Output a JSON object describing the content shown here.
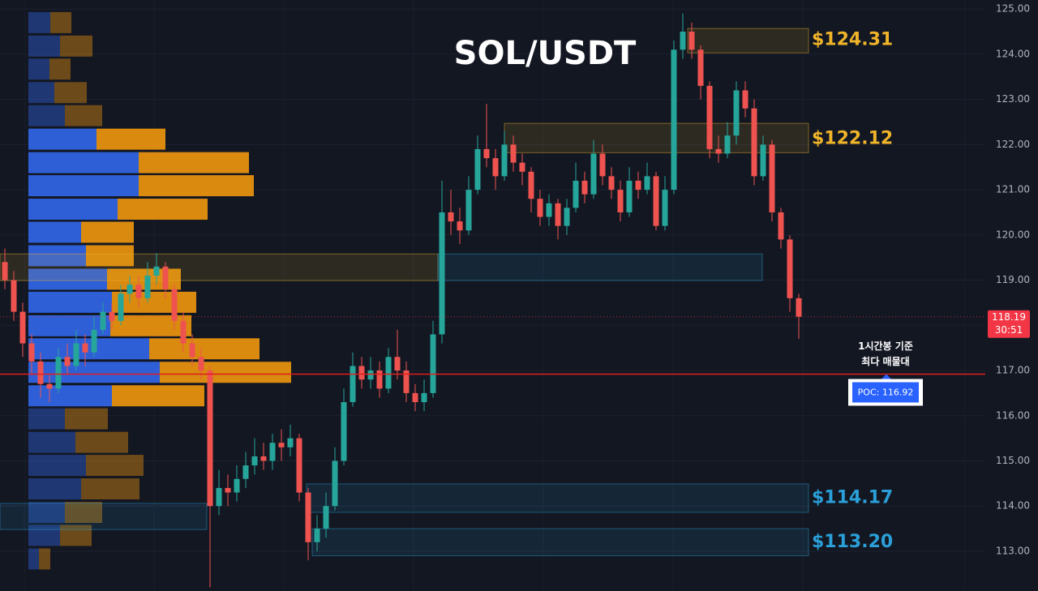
{
  "chart_data": {
    "type": "candlestick",
    "title": "SOL/USDT",
    "ylim": [
      112.12,
      125.2
    ],
    "yticks": [
      {
        "value": 113,
        "label": "113.00"
      },
      {
        "value": 114,
        "label": "114.00"
      },
      {
        "value": 115,
        "label": "115.00"
      },
      {
        "value": 116,
        "label": "116.00"
      },
      {
        "value": 117,
        "label": "117.00"
      },
      {
        "value": 118,
        "label": "118.00"
      },
      {
        "value": 119,
        "label": "119.00"
      },
      {
        "value": 120,
        "label": "120.00"
      },
      {
        "value": 121,
        "label": "121.00"
      },
      {
        "value": 122,
        "label": "122.00"
      },
      {
        "value": 123,
        "label": "123.00"
      },
      {
        "value": 124,
        "label": "124.00"
      },
      {
        "value": 125,
        "label": "125.00"
      }
    ],
    "grid": true,
    "up_color": "#26a69a",
    "down_color": "#ef5350",
    "open": [
      119.4,
      119.0,
      118.3,
      117.6,
      117.2,
      116.7,
      116.6,
      117.3,
      117.1,
      117.6,
      117.4,
      117.9,
      118.3,
      118.1,
      118.7,
      118.9,
      118.6,
      119.1,
      119.3,
      118.8,
      118.1,
      117.6,
      117.3,
      117.0,
      114.0,
      114.4,
      114.3,
      114.6,
      114.9,
      115.1,
      115.0,
      115.4,
      115.3,
      115.5,
      114.3,
      113.2,
      113.5,
      114.0,
      115.0,
      116.3,
      117.1,
      116.8,
      117.0,
      116.6,
      117.3,
      117.0,
      116.5,
      116.3,
      116.5,
      117.8,
      120.5,
      120.3,
      120.1,
      121.0,
      121.9,
      121.7,
      121.3,
      122.0,
      121.6,
      121.4,
      120.8,
      120.4,
      120.7,
      120.2,
      120.6,
      121.2,
      120.9,
      121.8,
      121.3,
      121.0,
      120.5,
      121.2,
      121.0,
      121.3,
      120.2,
      121.0,
      124.1,
      124.5,
      124.1,
      123.3,
      121.9,
      121.8,
      122.2,
      123.2,
      122.8,
      121.3,
      122.0,
      120.5,
      119.9,
      118.6
    ],
    "high": [
      119.7,
      119.2,
      118.5,
      117.8,
      117.4,
      116.9,
      117.5,
      117.6,
      117.9,
      117.8,
      118.2,
      118.5,
      118.5,
      118.9,
      119.1,
      119.1,
      119.4,
      119.6,
      119.4,
      118.9,
      118.3,
      117.8,
      117.5,
      117.1,
      114.8,
      114.7,
      114.9,
      115.2,
      115.5,
      115.4,
      115.6,
      115.7,
      115.8,
      115.6,
      114.4,
      113.8,
      114.3,
      115.3,
      116.6,
      117.4,
      117.3,
      117.3,
      117.2,
      117.5,
      117.9,
      117.2,
      116.7,
      116.8,
      118.1,
      121.2,
      121.0,
      120.6,
      121.3,
      122.2,
      122.9,
      121.9,
      122.3,
      122.2,
      121.8,
      121.5,
      121.0,
      120.9,
      120.8,
      120.8,
      121.6,
      121.4,
      122.1,
      122.0,
      121.5,
      121.2,
      121.5,
      121.4,
      121.6,
      121.4,
      121.3,
      124.3,
      124.9,
      124.7,
      124.2,
      123.4,
      122.2,
      122.5,
      123.4,
      123.4,
      123.0,
      122.2,
      122.1,
      120.6,
      120.0,
      118.7
    ],
    "low": [
      118.8,
      118.1,
      117.3,
      116.9,
      116.4,
      116.3,
      116.5,
      116.9,
      117.0,
      117.1,
      117.3,
      117.8,
      117.9,
      118.0,
      118.5,
      118.4,
      118.5,
      118.9,
      118.6,
      117.9,
      117.4,
      117.1,
      116.8,
      112.2,
      113.8,
      114.0,
      114.1,
      114.4,
      114.7,
      114.8,
      114.8,
      115.0,
      115.1,
      114.1,
      112.8,
      113.0,
      113.3,
      113.9,
      114.9,
      116.2,
      116.6,
      116.6,
      116.4,
      116.5,
      116.8,
      116.3,
      116.1,
      116.1,
      116.4,
      117.6,
      120.0,
      119.8,
      120.0,
      120.9,
      121.5,
      121.0,
      121.2,
      121.4,
      121.1,
      120.5,
      120.2,
      120.2,
      119.9,
      120.0,
      120.5,
      120.7,
      120.8,
      121.1,
      120.8,
      120.3,
      120.4,
      120.8,
      120.9,
      120.1,
      120.1,
      120.9,
      123.9,
      123.9,
      123.0,
      121.7,
      121.6,
      121.7,
      122.0,
      122.6,
      121.1,
      121.2,
      120.3,
      119.7,
      118.3,
      117.7
    ],
    "close": [
      119.0,
      118.3,
      117.6,
      117.2,
      116.7,
      116.6,
      117.3,
      117.1,
      117.6,
      117.4,
      117.9,
      118.3,
      118.1,
      118.7,
      118.9,
      118.6,
      119.1,
      119.3,
      118.8,
      118.1,
      117.6,
      117.3,
      117.0,
      114.0,
      114.4,
      114.3,
      114.6,
      114.9,
      115.1,
      115.0,
      115.4,
      115.3,
      115.5,
      114.3,
      113.2,
      113.5,
      114.0,
      115.0,
      116.3,
      117.1,
      116.8,
      117.0,
      116.6,
      117.3,
      117.0,
      116.5,
      116.3,
      116.5,
      117.8,
      120.5,
      120.3,
      120.1,
      121.0,
      121.9,
      121.7,
      121.3,
      122.0,
      121.6,
      121.4,
      120.8,
      120.4,
      120.7,
      120.2,
      120.6,
      121.2,
      120.9,
      121.8,
      121.3,
      121.0,
      120.5,
      121.2,
      121.0,
      121.3,
      120.2,
      121.0,
      124.1,
      124.5,
      124.1,
      123.3,
      121.9,
      121.8,
      122.2,
      123.2,
      122.8,
      121.3,
      122.0,
      120.5,
      119.9,
      118.6,
      118.19
    ],
    "volume_profile": {
      "levels": [
        124.7,
        124.18,
        123.67,
        123.15,
        122.64,
        122.12,
        121.6,
        121.09,
        120.57,
        120.06,
        119.54,
        119.02,
        118.51,
        117.99,
        117.48,
        116.96,
        116.44,
        115.93,
        115.41,
        114.9,
        114.38,
        113.86,
        113.35,
        112.83
      ],
      "buy": [
        27,
        39,
        26,
        32,
        45,
        84,
        136,
        136,
        110,
        65,
        71,
        97,
        103,
        101,
        149,
        162,
        103,
        45,
        58,
        71,
        65,
        45,
        39,
        13
      ],
      "sell": [
        26,
        40,
        26,
        40,
        46,
        85,
        136,
        142,
        111,
        65,
        59,
        91,
        104,
        100,
        136,
        162,
        114,
        53,
        65,
        71,
        72,
        46,
        39,
        14
      ],
      "buy_color": "#2f5fd6",
      "sell_color": "#d98a0f",
      "value_area": {
        "low": 116.2,
        "high": 122.4
      }
    },
    "zones": [
      {
        "low": 124.03,
        "high": 124.57,
        "color": "#f0b429",
        "label": {
          "value": 124.31,
          "label": "$124.31"
        }
      },
      {
        "low": 121.82,
        "high": 122.47,
        "color": "#f0b429",
        "label": {
          "value": 122.12,
          "label": "$122.12"
        }
      },
      {
        "low": 118.99,
        "high": 119.58,
        "color": "#f0b429"
      },
      {
        "low": 118.99,
        "high": 119.58,
        "color": "#2a9fd8"
      },
      {
        "low": 113.86,
        "high": 114.49,
        "color": "#2a9fd8",
        "label": {
          "value": 114.17,
          "label": "$114.17"
        }
      },
      {
        "low": 113.48,
        "high": 114.06,
        "color": "#2a9fd8"
      },
      {
        "low": 112.9,
        "high": 113.5,
        "color": "#2a9fd8",
        "label": {
          "value": 113.2,
          "label": "$113.20"
        }
      }
    ],
    "poc": {
      "value": 116.92,
      "label": "POC: 116.92",
      "color": "#e01e1e"
    },
    "annotation": [
      "1시간봉 기준",
      "최다 매물대"
    ],
    "last_price": {
      "value": 118.19,
      "label": "118.19",
      "color": "#f23645"
    },
    "countdown": "30:51"
  }
}
